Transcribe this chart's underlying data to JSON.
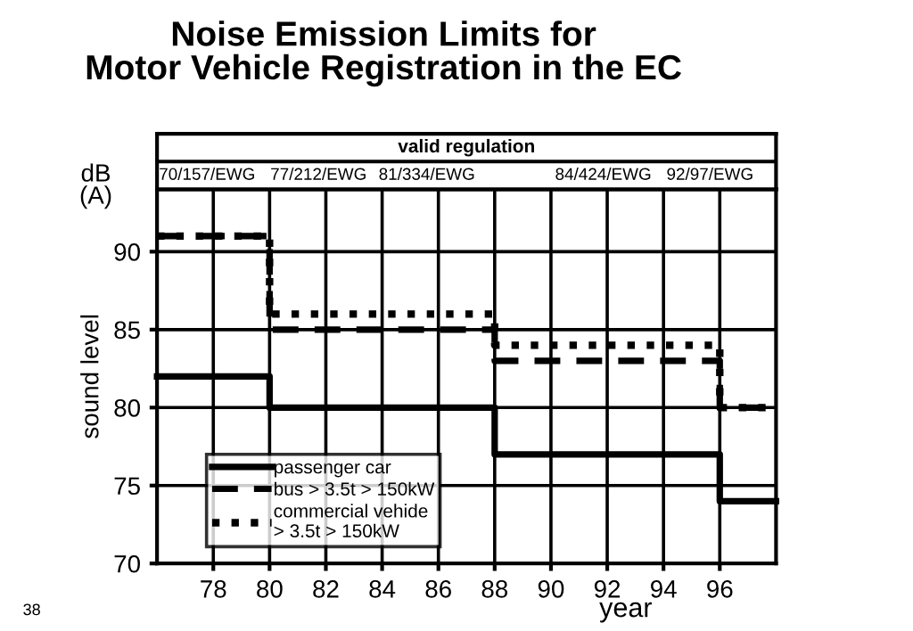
{
  "chart_data": {
    "type": "step",
    "title": "Noise Emission Limits for\nMotor Vehicle Registration in the EC",
    "xlabel": "year",
    "ylabel": "sound level",
    "x": [
      76,
      80,
      88,
      96,
      98
    ],
    "series": [
      {
        "name": "passenger car",
        "color": "#000000",
        "line_style": "solid",
        "values": [
          82,
          80,
          77,
          74,
          74
        ]
      },
      {
        "name": "bus > 3.5t > 150kW",
        "color": "#000000",
        "line_style": "dashed",
        "values": [
          91,
          85,
          83,
          80,
          80
        ]
      },
      {
        "name": "commercial vehide\n> 3.5t > 150kW",
        "color": "#000000",
        "line_style": "dotted",
        "values": [
          91,
          86,
          84,
          80,
          80
        ]
      }
    ],
    "xlim": [
      76,
      98
    ],
    "xticks": [
      78,
      80,
      82,
      84,
      86,
      88,
      90,
      92,
      94,
      96
    ],
    "ylim": [
      70,
      94
    ],
    "yticks": [
      70,
      75,
      80,
      85,
      90
    ],
    "grid": true,
    "legend": "bottom left",
    "marker": "none",
    "annotations": [
      "valid regulation",
      "70/157/EWG",
      "77/212/EWG",
      "81/334/EWG",
      "84/424/EWG",
      "92/97/EWG",
      "dB\n(A)",
      "38"
    ]
  }
}
